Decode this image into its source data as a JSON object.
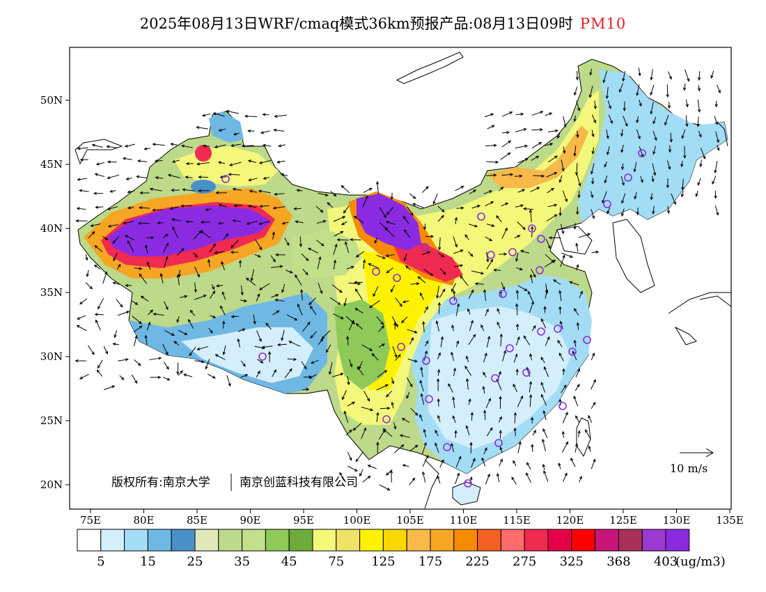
{
  "title": {
    "main": "2025年08月13日WRF/cmaq模式36km预报产品:08月13日09时",
    "pollutant": "PM10",
    "pollutant_color": "#e02020"
  },
  "axes": {
    "lon_ticks": [
      "75E",
      "80E",
      "85E",
      "90E",
      "95E",
      "100E",
      "105E",
      "110E",
      "115E",
      "120E",
      "125E",
      "130E",
      "135E"
    ],
    "lat_ticks": [
      "50N",
      "45N",
      "40N",
      "35N",
      "30N",
      "25N",
      "20N"
    ]
  },
  "legend": {
    "colors": [
      "#ffffff",
      "#d4effb",
      "#a3dcf5",
      "#6fb8e4",
      "#4a90c8",
      "#dfe9b8",
      "#bdd98a",
      "#c2e08a",
      "#8fc95a",
      "#6fab3a",
      "#f3f77a",
      "#f0e266",
      "#fff200",
      "#f8d800",
      "#f8b84a",
      "#f6a623",
      "#f68a00",
      "#f26122",
      "#fd6b6b",
      "#f02a50",
      "#e6004a",
      "#ff0000",
      "#c8167a",
      "#a8305a",
      "#9b3ad0",
      "#8a2be2"
    ],
    "labels": [
      "5",
      "15",
      "25",
      "35",
      "45",
      "75",
      "125",
      "175",
      "225",
      "275",
      "325",
      "368",
      "403"
    ],
    "unit": "(ug/m3)"
  },
  "wind_scale": {
    "label": "10 m/s"
  },
  "copyright": {
    "left": "版权所有:南京大学",
    "right": "南京创蓝科技有限公司"
  }
}
